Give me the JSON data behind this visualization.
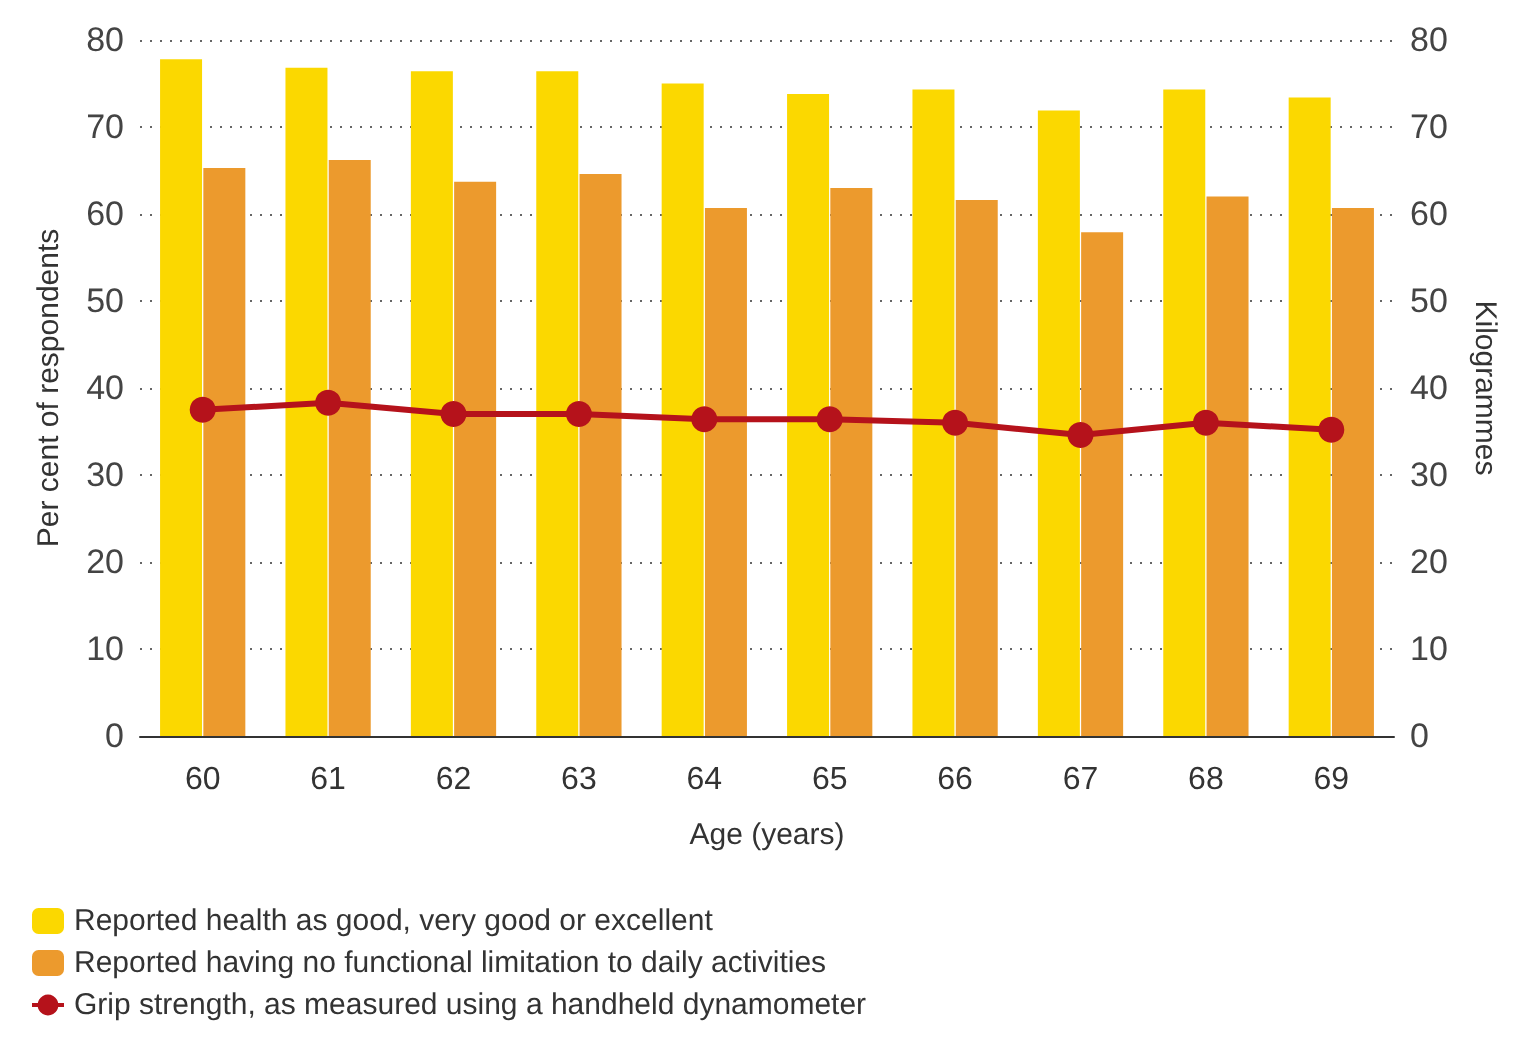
{
  "chart_data": {
    "type": "bar",
    "xlabel": "Age (years)",
    "ylabel": "Per cent of respondents",
    "y2label": "Kilogrammes",
    "categories": [
      "60",
      "61",
      "62",
      "63",
      "64",
      "65",
      "66",
      "67",
      "68",
      "69"
    ],
    "series": [
      {
        "name": "Reported health as good, very good or excellent",
        "color": "#fbd800",
        "values": [
          77.8,
          76.8,
          76.4,
          76.4,
          75.0,
          73.8,
          74.3,
          71.9,
          74.3,
          73.4
        ]
      },
      {
        "name": "Reported having no functional limitation to daily activities",
        "color": "#ec9a2d",
        "values": [
          65.3,
          66.2,
          63.7,
          64.6,
          60.7,
          63.0,
          61.6,
          57.9,
          62.0,
          60.7
        ]
      },
      {
        "name": "Grip strength, as measured using a handheld dynamometer",
        "type": "line",
        "axis": "y2",
        "color": "#b5121b",
        "marker": "circle",
        "values": [
          37.5,
          38.3,
          37.0,
          37.0,
          36.4,
          36.4,
          36.0,
          34.6,
          36.0,
          35.2
        ]
      }
    ],
    "ylim": [
      0,
      80
    ],
    "yticks": [
      0,
      10,
      20,
      30,
      40,
      50,
      60,
      70,
      80
    ],
    "y2lim": [
      0,
      80
    ],
    "y2ticks": [
      0,
      10,
      20,
      30,
      40,
      50,
      60,
      70,
      80
    ],
    "grid": "y",
    "legend": "bottom left"
  }
}
